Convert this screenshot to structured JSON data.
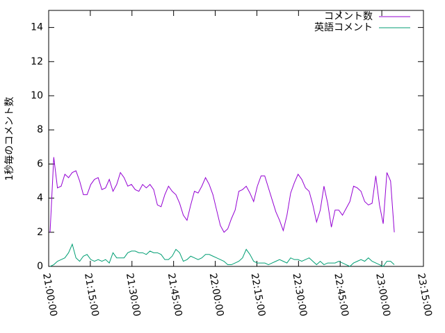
{
  "chart_data": {
    "type": "line",
    "ylabel": "1秒毎のコメント数",
    "xlim": [
      "21:00:00",
      "23:15:00"
    ],
    "xticks": [
      "21:00:00",
      "21:15:00",
      "21:30:00",
      "21:45:00",
      "22:00:00",
      "22:15:00",
      "22:30:00",
      "22:45:00",
      "23:00:00",
      "23:15:00"
    ],
    "ylim": [
      0,
      15
    ],
    "yticks": [
      0,
      2,
      4,
      6,
      8,
      10,
      12,
      14
    ],
    "grid": false,
    "legend": "top-right",
    "x": [
      "21:00:30",
      "21:01:50",
      "21:03:10",
      "21:04:30",
      "21:05:50",
      "21:07:10",
      "21:08:30",
      "21:09:50",
      "21:11:10",
      "21:12:30",
      "21:13:50",
      "21:15:10",
      "21:16:30",
      "21:17:50",
      "21:19:10",
      "21:20:30",
      "21:21:50",
      "21:23:10",
      "21:24:30",
      "21:25:50",
      "21:27:10",
      "21:28:30",
      "21:29:50",
      "21:31:10",
      "21:32:30",
      "21:33:50",
      "21:35:10",
      "21:36:30",
      "21:37:50",
      "21:39:10",
      "21:40:30",
      "21:41:50",
      "21:43:10",
      "21:44:30",
      "21:45:50",
      "21:47:10",
      "21:48:30",
      "21:49:50",
      "21:51:10",
      "21:52:30",
      "21:53:50",
      "21:55:10",
      "21:56:30",
      "21:57:50",
      "21:59:10",
      "22:00:30",
      "22:01:50",
      "22:03:10",
      "22:04:30",
      "22:05:50",
      "22:07:10",
      "22:08:30",
      "22:09:50",
      "22:11:10",
      "22:12:30",
      "22:13:50",
      "22:15:10",
      "22:16:30",
      "22:17:50",
      "22:19:10",
      "22:20:30",
      "22:21:50",
      "22:23:10",
      "22:24:30",
      "22:25:50",
      "22:27:10",
      "22:28:30",
      "22:29:50",
      "22:31:10",
      "22:32:30",
      "22:33:50",
      "22:35:10",
      "22:36:30",
      "22:37:50",
      "22:39:10",
      "22:40:30",
      "22:41:50",
      "22:43:10",
      "22:44:30",
      "22:45:50",
      "22:47:10",
      "22:48:30",
      "22:49:50",
      "22:51:10",
      "22:52:30",
      "22:53:50",
      "22:55:10",
      "22:56:30",
      "22:57:50",
      "22:59:10",
      "23:00:30",
      "23:01:50",
      "23:03:10",
      "23:04:30"
    ],
    "series": [
      {
        "name": "コメント数",
        "color": "#9400d3",
        "values": [
          2.0,
          6.4,
          4.6,
          4.7,
          5.4,
          5.2,
          5.5,
          5.6,
          5.0,
          4.2,
          4.2,
          4.8,
          5.1,
          5.2,
          4.5,
          4.6,
          5.1,
          4.4,
          4.8,
          5.5,
          5.2,
          4.7,
          4.8,
          4.5,
          4.4,
          4.8,
          4.6,
          4.8,
          4.5,
          3.6,
          3.5,
          4.2,
          4.7,
          4.4,
          4.2,
          3.7,
          3.0,
          2.7,
          3.6,
          4.4,
          4.3,
          4.7,
          5.2,
          4.8,
          4.2,
          3.3,
          2.4,
          2.0,
          2.2,
          2.8,
          3.3,
          4.4,
          4.5,
          4.7,
          4.3,
          3.8,
          4.7,
          5.3,
          5.3,
          4.6,
          3.9,
          3.2,
          2.7,
          2.1,
          3.0,
          4.3,
          4.9,
          5.4,
          5.1,
          4.6,
          4.4,
          3.6,
          2.6,
          3.3,
          4.7,
          3.7,
          2.3,
          3.3,
          3.3,
          3.0,
          3.4,
          3.8,
          4.7,
          4.6,
          4.4,
          3.8,
          3.6,
          3.7,
          5.3,
          3.6,
          2.5,
          5.5,
          5.0,
          2.0
        ]
      },
      {
        "name": "英語コメント",
        "color": "#009e73",
        "values": [
          0.0,
          0.1,
          0.3,
          0.4,
          0.5,
          0.8,
          1.3,
          0.5,
          0.3,
          0.6,
          0.7,
          0.4,
          0.3,
          0.4,
          0.3,
          0.4,
          0.2,
          0.8,
          0.5,
          0.5,
          0.5,
          0.8,
          0.9,
          0.9,
          0.8,
          0.8,
          0.7,
          0.9,
          0.8,
          0.8,
          0.7,
          0.4,
          0.4,
          0.6,
          1.0,
          0.8,
          0.3,
          0.4,
          0.6,
          0.5,
          0.4,
          0.5,
          0.7,
          0.7,
          0.6,
          0.5,
          0.4,
          0.3,
          0.1,
          0.1,
          0.2,
          0.3,
          0.5,
          1.0,
          0.7,
          0.3,
          0.2,
          0.2,
          0.2,
          0.1,
          0.2,
          0.3,
          0.4,
          0.3,
          0.2,
          0.5,
          0.4,
          0.4,
          0.3,
          0.4,
          0.5,
          0.3,
          0.1,
          0.3,
          0.1,
          0.2,
          0.2,
          0.2,
          0.3,
          0.2,
          0.1,
          0.0,
          0.2,
          0.3,
          0.4,
          0.3,
          0.5,
          0.3,
          0.2,
          0.1,
          0.0,
          0.3,
          0.3,
          0.1
        ]
      }
    ]
  }
}
